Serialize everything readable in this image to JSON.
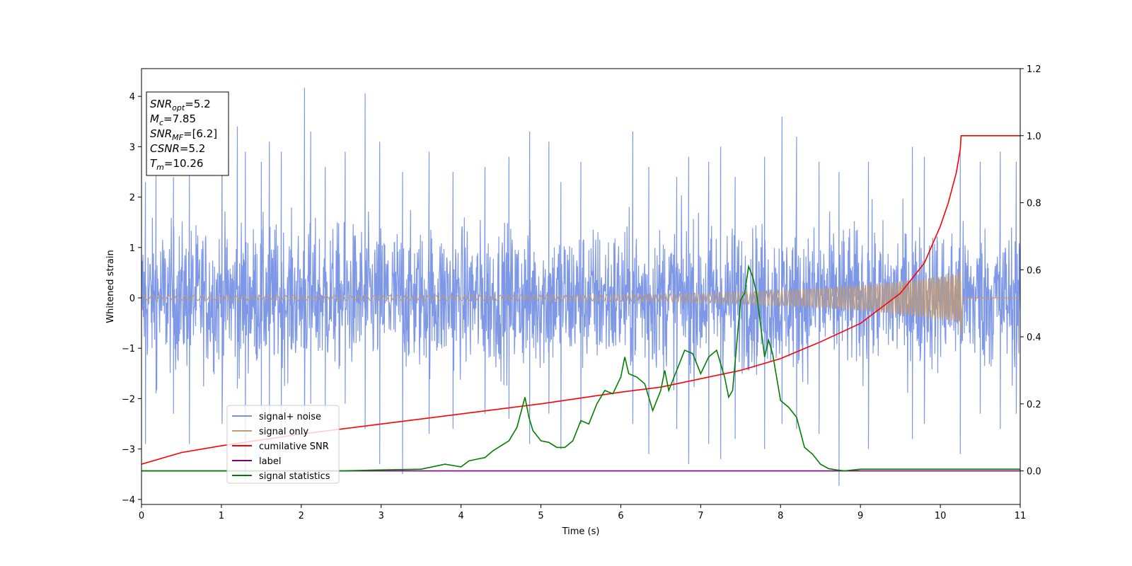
{
  "chart_data": {
    "type": "line",
    "xlabel": "Time (s)",
    "ylabel": "Whitened strain",
    "xlim": [
      0,
      11
    ],
    "ylim": [
      -4.1,
      4.55
    ],
    "ylim_right": [
      -0.1,
      1.2
    ],
    "x_ticks": [
      "0",
      "1",
      "2",
      "3",
      "4",
      "5",
      "6",
      "7",
      "8",
      "9",
      "10",
      "11"
    ],
    "y_ticks": [
      "−4",
      "−3",
      "−2",
      "−1",
      "0",
      "1",
      "2",
      "3",
      "4"
    ],
    "y_right_ticks": [
      "0.0",
      "0.2",
      "0.4",
      "0.6",
      "0.8",
      "1.0",
      "1.2"
    ],
    "grid": false,
    "legend_position": "lower-left",
    "annotation": {
      "lines": [
        {
          "sym": "SNR",
          "sub": "opt",
          "val": "=5.2"
        },
        {
          "sym": "M",
          "sub": "c",
          "val": "=7.85"
        },
        {
          "sym": "SNR",
          "sub": "MF",
          "val": "=[6.2]"
        },
        {
          "sym": "CSNR",
          "sub": "",
          "val": "=5.2"
        },
        {
          "sym": "T",
          "sub": "m",
          "val": "=10.26"
        }
      ]
    },
    "series": [
      {
        "name": "signal+ noise",
        "color": "#7792e6",
        "axis": "left",
        "description_values": {
          "envelope_typical": [
            -1.8,
            1.8
          ],
          "max": 4.17,
          "min": -3.73
        },
        "spikes": [
          [
            0.05,
            2.3,
            -2.9
          ],
          [
            0.18,
            2.6,
            -1.9
          ],
          [
            0.4,
            2.4,
            -2.3
          ],
          [
            0.6,
            2.5,
            -2.9
          ],
          [
            1.01,
            3.4,
            -2.5
          ],
          [
            1.2,
            3.4,
            -1.8
          ],
          [
            1.3,
            2.9,
            -3.6
          ],
          [
            1.5,
            2.7,
            -2.2
          ],
          [
            1.6,
            3.1,
            -2.5
          ],
          [
            1.75,
            2.9,
            -2.6
          ],
          [
            2.04,
            4.17,
            -2.5
          ],
          [
            2.12,
            3.3,
            -2.1
          ],
          [
            2.3,
            2.6,
            -2.2
          ],
          [
            2.55,
            2.9,
            -2.1
          ],
          [
            2.8,
            4.06,
            -2.6
          ],
          [
            2.98,
            3.1,
            -3.3
          ],
          [
            3.27,
            2.5,
            -3.5
          ],
          [
            3.6,
            2.9,
            -2.7
          ],
          [
            3.9,
            2.5,
            -2.6
          ],
          [
            4.3,
            2.6,
            -2.3
          ],
          [
            4.6,
            2.8,
            -2.4
          ],
          [
            4.86,
            3.3,
            -2.9
          ],
          [
            5.1,
            3.1,
            -2.3
          ],
          [
            5.25,
            2.3,
            -3.0
          ],
          [
            5.5,
            2.7,
            -2.5
          ],
          [
            6.15,
            3.3,
            -2.5
          ],
          [
            6.35,
            2.6,
            -3.1
          ],
          [
            6.7,
            2.4,
            -2.6
          ],
          [
            6.85,
            2.8,
            -3.3
          ],
          [
            7.1,
            2.7,
            -2.9
          ],
          [
            7.25,
            3.0,
            -3.2
          ],
          [
            7.43,
            2.4,
            -2.8
          ],
          [
            7.8,
            2.8,
            -3.0
          ],
          [
            8.02,
            3.6,
            -2.5
          ],
          [
            8.2,
            3.2,
            -2.6
          ],
          [
            8.48,
            2.7,
            -2.7
          ],
          [
            8.73,
            2.5,
            -3.73
          ],
          [
            9.1,
            2.7,
            -3.0
          ],
          [
            9.65,
            3.0,
            -2.8
          ],
          [
            9.8,
            2.8,
            -2.5
          ],
          [
            10.25,
            2.9,
            -3.1
          ],
          [
            10.5,
            2.7,
            -2.3
          ],
          [
            10.75,
            2.9,
            -2.6
          ],
          [
            10.95,
            2.7,
            -2.3
          ]
        ]
      },
      {
        "name": "signal only",
        "color": "#c49b6e",
        "axis": "left",
        "chirp": {
          "start_amp": 0.05,
          "merger_time": 10.26,
          "peak_pos": 0.55,
          "peak_neg": -0.75
        }
      },
      {
        "name": "cumilative SNR",
        "color": "#ff0000",
        "axis": "right",
        "x": [
          0,
          0.5,
          1,
          2,
          3,
          4,
          5,
          6,
          6.5,
          7,
          7.5,
          8,
          8.5,
          9,
          9.5,
          9.8,
          10,
          10.1,
          10.2,
          10.25,
          10.26,
          11
        ],
        "values": [
          0.02,
          0.055,
          0.075,
          0.11,
          0.14,
          0.17,
          0.2,
          0.235,
          0.25,
          0.275,
          0.3,
          0.335,
          0.385,
          0.44,
          0.53,
          0.62,
          0.73,
          0.8,
          0.89,
          0.96,
          1.0,
          1.0
        ]
      },
      {
        "name": "label",
        "color": "#800080",
        "axis": "right",
        "x": [
          0,
          11
        ],
        "values": [
          0,
          0
        ]
      },
      {
        "name": "signal statistics",
        "color": "#008000",
        "axis": "right",
        "x": [
          0,
          1,
          2,
          2.5,
          3,
          3.5,
          3.8,
          4.0,
          4.1,
          4.2,
          4.3,
          4.4,
          4.5,
          4.6,
          4.7,
          4.8,
          4.85,
          4.9,
          5.0,
          5.1,
          5.2,
          5.3,
          5.4,
          5.5,
          5.6,
          5.7,
          5.8,
          5.9,
          6.0,
          6.05,
          6.1,
          6.2,
          6.3,
          6.4,
          6.5,
          6.55,
          6.6,
          6.7,
          6.8,
          6.9,
          7.0,
          7.1,
          7.2,
          7.3,
          7.35,
          7.4,
          7.5,
          7.55,
          7.6,
          7.65,
          7.7,
          7.8,
          7.85,
          7.9,
          8.0,
          8.1,
          8.2,
          8.3,
          8.4,
          8.5,
          8.6,
          8.7,
          8.8,
          9.0,
          9.5,
          10,
          10.5,
          11
        ],
        "values": [
          0.0,
          0.0,
          0.0,
          0.0,
          0.003,
          0.005,
          0.02,
          0.012,
          0.03,
          0.035,
          0.04,
          0.06,
          0.075,
          0.09,
          0.13,
          0.22,
          0.16,
          0.12,
          0.09,
          0.085,
          0.07,
          0.07,
          0.09,
          0.15,
          0.14,
          0.2,
          0.24,
          0.23,
          0.28,
          0.34,
          0.29,
          0.28,
          0.26,
          0.18,
          0.24,
          0.3,
          0.24,
          0.3,
          0.36,
          0.35,
          0.29,
          0.34,
          0.36,
          0.28,
          0.22,
          0.24,
          0.51,
          0.53,
          0.61,
          0.58,
          0.53,
          0.34,
          0.39,
          0.35,
          0.21,
          0.19,
          0.16,
          0.07,
          0.05,
          0.02,
          0.007,
          0.003,
          0.0,
          0.005,
          0.005,
          0.005,
          0.005,
          0.005
        ]
      }
    ]
  }
}
